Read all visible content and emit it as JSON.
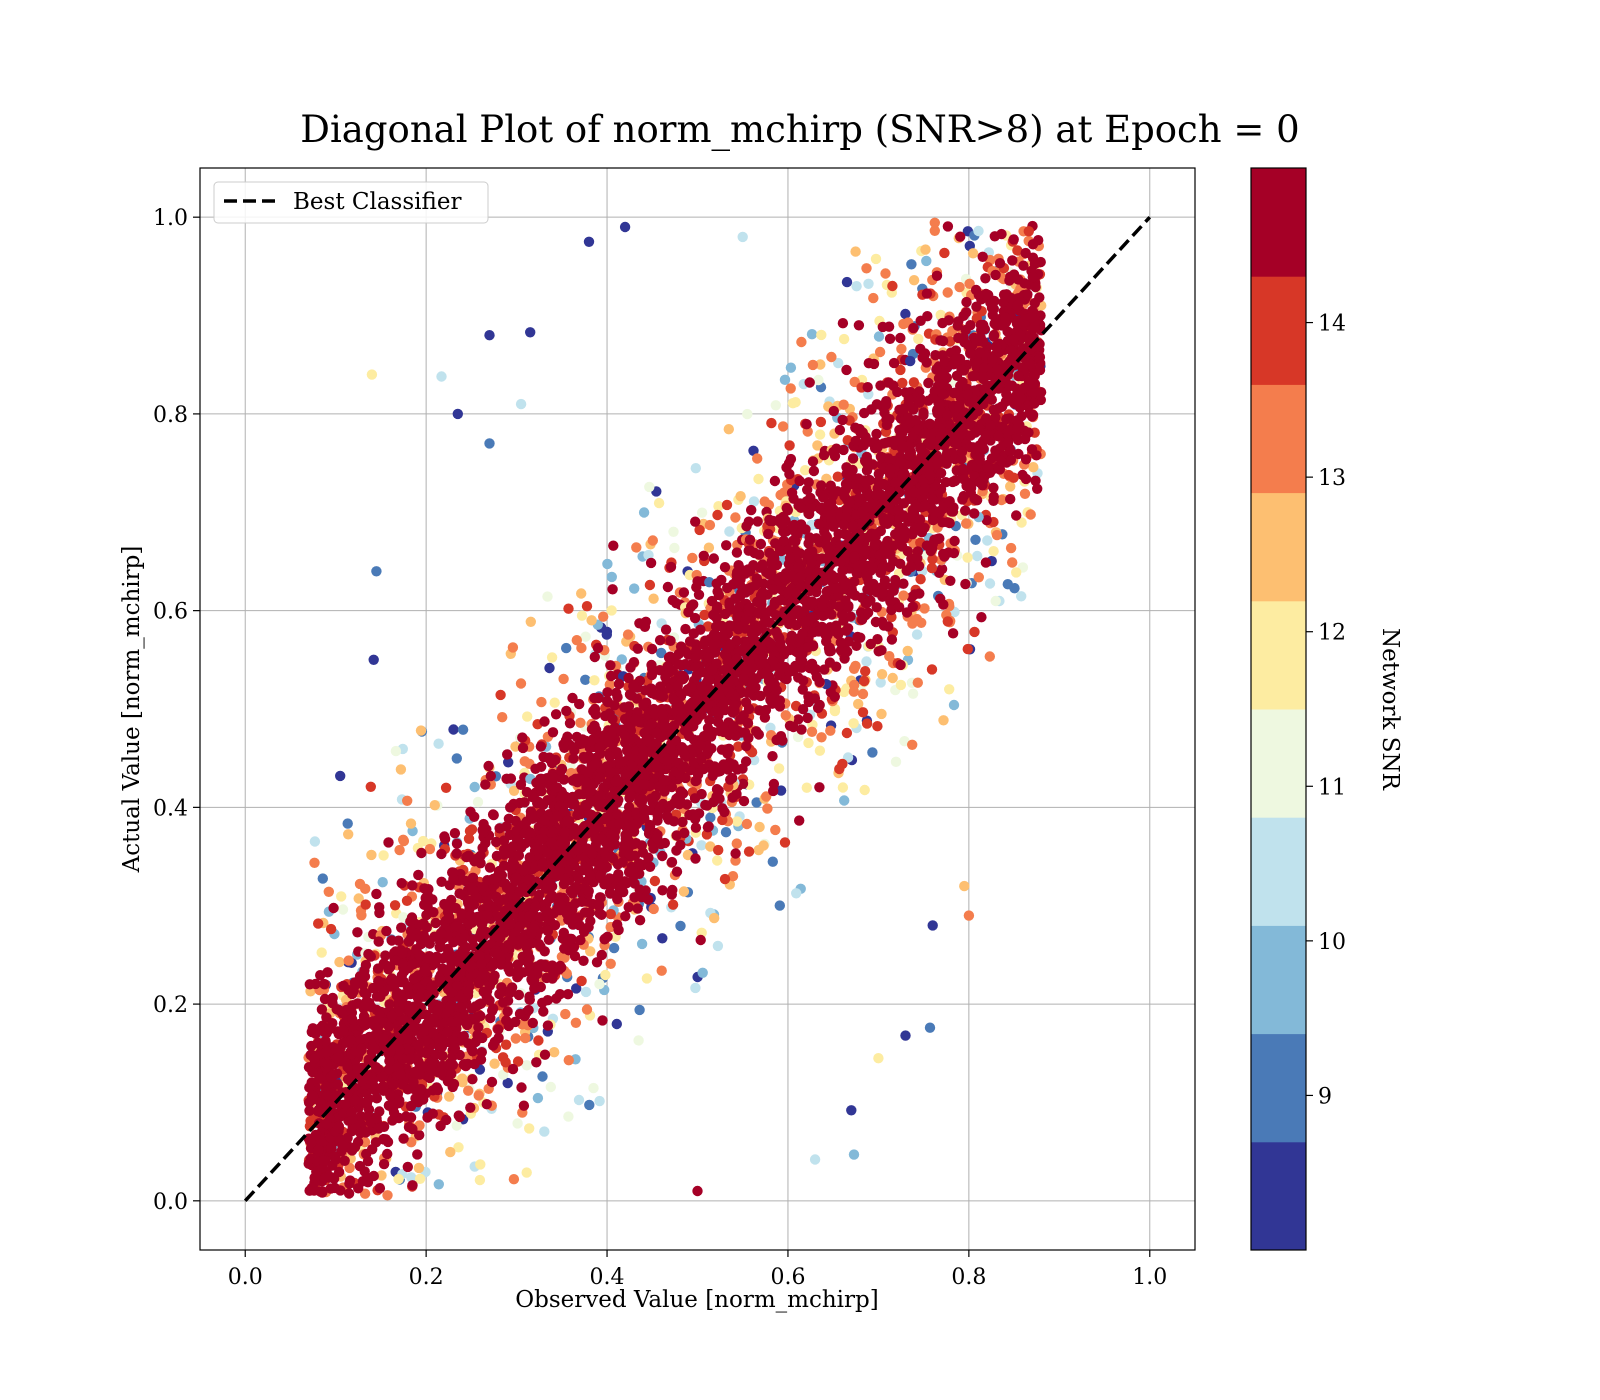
{
  "chart_data": {
    "type": "scatter",
    "title": "Diagonal Plot of norm_mchirp (SNR>8) at Epoch = 0",
    "xlabel": "Observed Value [norm_mchirp]",
    "ylabel": "Actual Value [norm_mchirp]",
    "xlim": [
      -0.05,
      1.05
    ],
    "ylim": [
      -0.05,
      1.05
    ],
    "xticks": [
      "0.0",
      "0.2",
      "0.4",
      "0.6",
      "0.8",
      "1.0"
    ],
    "yticks": [
      "0.0",
      "0.2",
      "0.4",
      "0.6",
      "0.8",
      "1.0"
    ],
    "grid": true,
    "legend": {
      "position": "top-left",
      "entries": [
        "Best Classifier"
      ]
    },
    "reference_line": {
      "name": "Best Classifier",
      "x": [
        0.0,
        1.0
      ],
      "y": [
        0.0,
        1.0
      ],
      "style": "dashed",
      "color": "#000000"
    },
    "colorbar": {
      "label": "Network SNR",
      "range": [
        8,
        15
      ],
      "ticks": [
        "9",
        "10",
        "11",
        "12",
        "13",
        "14"
      ],
      "levels": [
        {
          "from": 8.0,
          "to": 8.7,
          "color": "#313695"
        },
        {
          "from": 8.7,
          "to": 9.4,
          "color": "#4a7ab7"
        },
        {
          "from": 9.4,
          "to": 10.1,
          "color": "#83b9d8"
        },
        {
          "from": 10.1,
          "to": 10.8,
          "color": "#c0e2ed"
        },
        {
          "from": 10.8,
          "to": 11.5,
          "color": "#eef8e0"
        },
        {
          "from": 11.5,
          "to": 12.2,
          "color": "#fdeca1"
        },
        {
          "from": 12.2,
          "to": 12.9,
          "color": "#fdbf71"
        },
        {
          "from": 12.9,
          "to": 13.6,
          "color": "#f47d4d"
        },
        {
          "from": 13.6,
          "to": 14.3,
          "color": "#d73727"
        },
        {
          "from": 14.3,
          "to": 15.0,
          "color": "#a50026"
        }
      ]
    },
    "band": {
      "description_of_distribution": "points cluster along y = x; dense high-SNR core, low-SNR points spread wider",
      "x_range": [
        0.07,
        0.88
      ],
      "y_range": [
        0.0,
        1.0
      ],
      "core_halfwidth": 0.11,
      "outer_halfwidth": 0.3
    },
    "sample_points": [
      {
        "x": 0.14,
        "y": 0.84,
        "snr": 12.0
      },
      {
        "x": 0.217,
        "y": 0.838,
        "snr": 10.5
      },
      {
        "x": 0.27,
        "y": 0.88,
        "snr": 8.3
      },
      {
        "x": 0.235,
        "y": 0.8,
        "snr": 8.3
      },
      {
        "x": 0.145,
        "y": 0.64,
        "snr": 9.0
      },
      {
        "x": 0.142,
        "y": 0.55,
        "snr": 8.3
      },
      {
        "x": 0.105,
        "y": 0.432,
        "snr": 8.3
      },
      {
        "x": 0.315,
        "y": 0.883,
        "snr": 8.3
      },
      {
        "x": 0.42,
        "y": 0.99,
        "snr": 8.3
      },
      {
        "x": 0.5,
        "y": 0.01,
        "snr": 14.8
      },
      {
        "x": 0.76,
        "y": 0.28,
        "snr": 8.3
      },
      {
        "x": 0.757,
        "y": 0.176,
        "snr": 9.0
      },
      {
        "x": 0.73,
        "y": 0.168,
        "snr": 8.3
      },
      {
        "x": 0.7,
        "y": 0.145,
        "snr": 11.5
      },
      {
        "x": 0.67,
        "y": 0.092,
        "snr": 8.3
      },
      {
        "x": 0.673,
        "y": 0.047,
        "snr": 9.7
      },
      {
        "x": 0.63,
        "y": 0.042,
        "snr": 10.5
      },
      {
        "x": 0.8,
        "y": 0.29,
        "snr": 13.5
      },
      {
        "x": 0.795,
        "y": 0.32,
        "snr": 12.5
      },
      {
        "x": 0.87,
        "y": 0.8,
        "snr": 13.5
      },
      {
        "x": 0.87,
        "y": 0.76,
        "snr": 14.0
      },
      {
        "x": 0.865,
        "y": 0.7,
        "snr": 12.0
      },
      {
        "x": 0.88,
        "y": 0.885,
        "snr": 14.8
      },
      {
        "x": 0.55,
        "y": 0.98,
        "snr": 10.5
      },
      {
        "x": 0.38,
        "y": 0.975,
        "snr": 8.3
      },
      {
        "x": 0.305,
        "y": 0.81,
        "snr": 10.5
      },
      {
        "x": 0.27,
        "y": 0.77,
        "snr": 9.0
      }
    ]
  }
}
